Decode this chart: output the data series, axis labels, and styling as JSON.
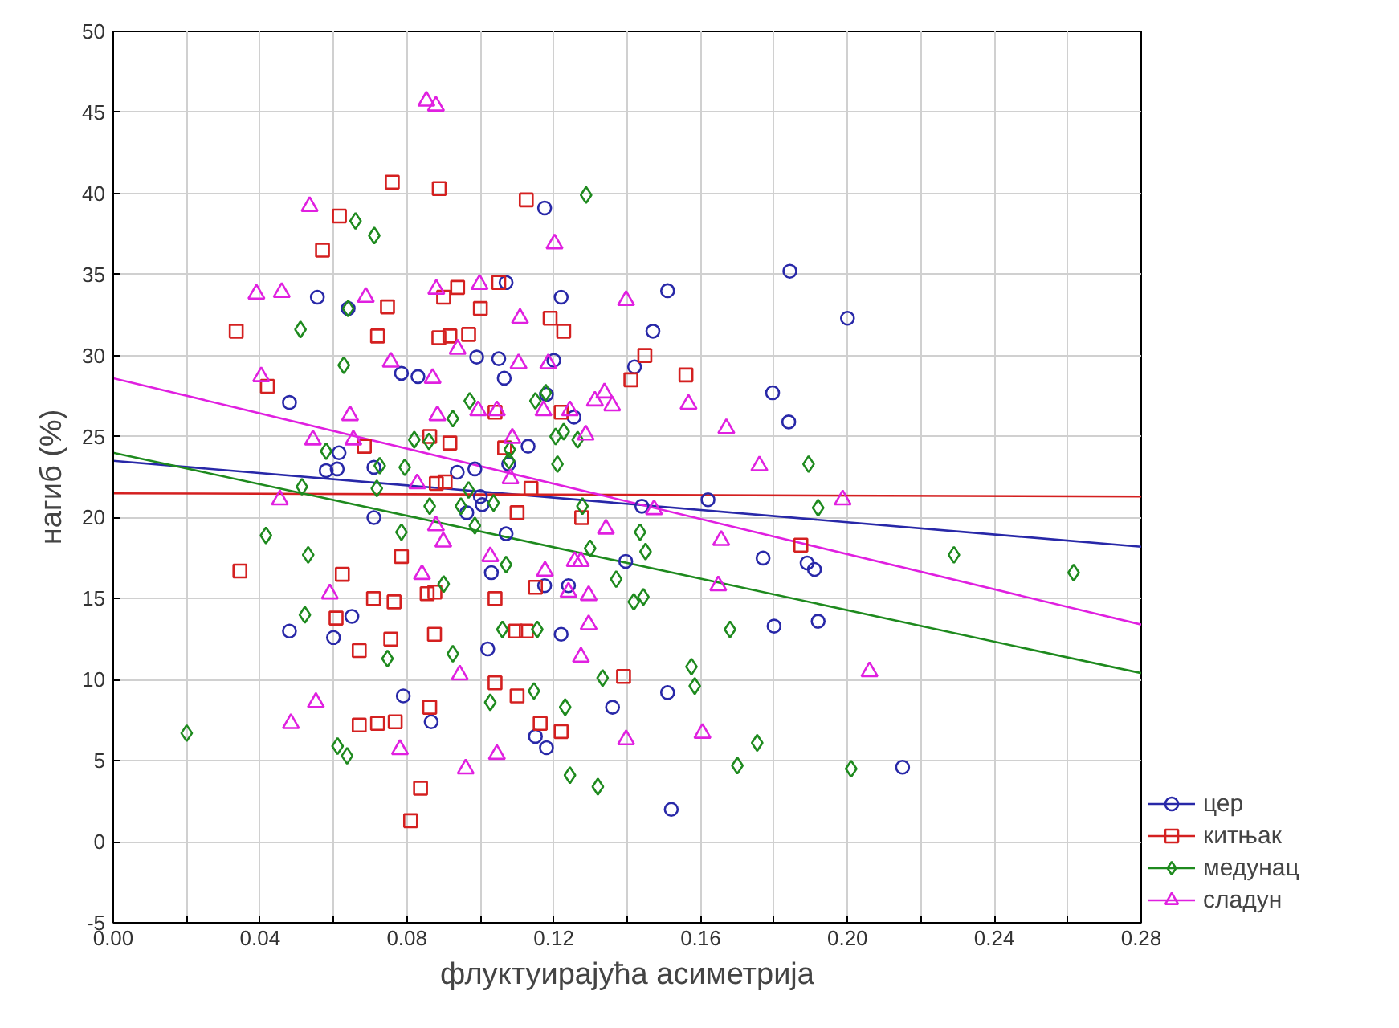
{
  "chart_data": {
    "type": "scatter",
    "xlabel": "флуктуирајућа асиметрија",
    "ylabel": "нагиб (%)",
    "xlim": [
      0,
      0.28
    ],
    "ylim": [
      -5,
      50
    ],
    "xticks": [
      {
        "value": 0,
        "label": "0.00"
      },
      {
        "value": 0.02,
        "label": null
      },
      {
        "value": 0.04,
        "label": "0.04"
      },
      {
        "value": 0.06,
        "label": null
      },
      {
        "value": 0.08,
        "label": "0.08"
      },
      {
        "value": 0.1,
        "label": null
      },
      {
        "value": 0.12,
        "label": "0.12"
      },
      {
        "value": 0.14,
        "label": null
      },
      {
        "value": 0.16,
        "label": "0.16"
      },
      {
        "value": 0.18,
        "label": null
      },
      {
        "value": 0.2,
        "label": "0.20"
      },
      {
        "value": 0.22,
        "label": null
      },
      {
        "value": 0.24,
        "label": "0.24"
      },
      {
        "value": 0.26,
        "label": null
      },
      {
        "value": 0.28,
        "label": "0.28"
      }
    ],
    "yticks": [
      -5,
      0,
      5,
      10,
      15,
      20,
      25,
      30,
      35,
      40,
      45,
      50
    ],
    "grid": true,
    "legend": "bottom right",
    "series": [
      {
        "name": "цер",
        "marker": "circle",
        "color": "#2828a8",
        "x": [
          0.1175,
          0.107,
          0.122,
          0.064,
          0.0556,
          0.099,
          0.105,
          0.0785,
          0.083,
          0.1065,
          0.12,
          0.048,
          0.118,
          0.1255,
          0.0615,
          0.113,
          0.1077,
          0.058,
          0.061,
          0.071,
          0.0937,
          0.0985,
          0.1,
          0.1005,
          0.0963,
          0.071,
          0.107,
          0.1396,
          0.103,
          0.1175,
          0.124,
          0.065,
          0.048,
          0.06,
          0.102,
          0.122,
          0.079,
          0.136,
          0.0866,
          0.115,
          0.118,
          0.1843,
          0.2,
          0.151,
          0.147,
          0.142,
          0.1796,
          0.184,
          0.144,
          0.162,
          0.177,
          0.189,
          0.191,
          0.18,
          0.192,
          0.151,
          0.152,
          0.215
        ],
        "values": [
          39.1,
          34.5,
          33.6,
          32.9,
          33.6,
          29.9,
          29.8,
          28.9,
          28.7,
          28.6,
          29.7,
          27.1,
          27.6,
          26.2,
          24.0,
          24.4,
          23.3,
          22.9,
          23.0,
          23.1,
          22.8,
          23.0,
          21.3,
          20.8,
          20.3,
          20.0,
          19.0,
          17.3,
          16.6,
          15.8,
          15.8,
          13.9,
          13.0,
          12.6,
          11.9,
          12.8,
          9.0,
          8.3,
          7.4,
          6.5,
          5.8,
          35.2,
          32.3,
          34.0,
          31.5,
          29.3,
          27.7,
          25.9,
          20.7,
          21.1,
          17.5,
          17.2,
          16.8,
          13.3,
          13.6,
          9.2,
          2.0,
          4.6
        ]
      },
      {
        "name": "китњак",
        "marker": "square",
        "color": "#d42020",
        "x": [
          0.076,
          0.0888,
          0.1125,
          0.0616,
          0.057,
          0.105,
          0.0938,
          0.09,
          0.0747,
          0.1,
          0.119,
          0.1227,
          0.0335,
          0.072,
          0.0887,
          0.0917,
          0.0968,
          0.042,
          0.104,
          0.122,
          0.0862,
          0.0917,
          0.0684,
          0.1066,
          0.088,
          0.0904,
          0.1138,
          0.141,
          0.1448,
          0.156,
          0.1276,
          0.11,
          0.0785,
          0.0345,
          0.0624,
          0.0855,
          0.0876,
          0.115,
          0.0709,
          0.0765,
          0.104,
          0.0607,
          0.0756,
          0.0875,
          0.067,
          0.1096,
          0.1125,
          0.139,
          0.104,
          0.11,
          0.0862,
          0.067,
          0.072,
          0.0768,
          0.1163,
          0.122,
          0.0837,
          0.081,
          0.1873
        ],
        "values": [
          40.7,
          40.3,
          39.6,
          38.6,
          36.5,
          34.5,
          34.2,
          33.6,
          33.0,
          32.9,
          32.3,
          31.5,
          31.5,
          31.2,
          31.1,
          31.2,
          31.3,
          28.1,
          26.5,
          26.5,
          25.0,
          24.6,
          24.4,
          24.3,
          22.1,
          22.2,
          21.8,
          28.5,
          30.0,
          28.8,
          20.0,
          20.3,
          17.6,
          16.7,
          16.5,
          15.3,
          15.4,
          15.7,
          15.0,
          14.8,
          15.0,
          13.8,
          12.5,
          12.8,
          11.8,
          13.0,
          13.0,
          10.2,
          9.8,
          9.0,
          8.3,
          7.2,
          7.3,
          7.4,
          7.3,
          6.8,
          3.3,
          1.3,
          18.3
        ]
      },
      {
        "name": "медунац",
        "marker": "diamond",
        "color": "#1e8a1e",
        "x": [
          0.1288,
          0.066,
          0.0711,
          0.064,
          0.051,
          0.0628,
          0.0971,
          0.0925,
          0.115,
          0.1178,
          0.1205,
          0.1227,
          0.1265,
          0.082,
          0.086,
          0.058,
          0.108,
          0.121,
          0.0726,
          0.0794,
          0.1078,
          0.0514,
          0.0718,
          0.0968,
          0.0862,
          0.0947,
          0.1036,
          0.1278,
          0.0985,
          0.0785,
          0.0416,
          0.1299,
          0.0531,
          0.107,
          0.137,
          0.09,
          0.0522,
          0.106,
          0.1155,
          0.0925,
          0.0747,
          0.1333,
          0.1146,
          0.1027,
          0.1231,
          0.02,
          0.0611,
          0.0637,
          0.1244,
          0.132,
          0.1894,
          0.192,
          0.1435,
          0.145,
          0.1418,
          0.1444,
          0.168,
          0.1575,
          0.1584,
          0.1754,
          0.17,
          0.201,
          0.229,
          0.2616
        ],
        "values": [
          39.9,
          38.3,
          37.4,
          32.9,
          31.6,
          29.4,
          27.2,
          26.1,
          27.2,
          27.7,
          25.0,
          25.3,
          24.8,
          24.8,
          24.7,
          24.1,
          24.2,
          23.3,
          23.2,
          23.1,
          23.5,
          21.9,
          21.8,
          21.7,
          20.7,
          20.7,
          20.9,
          20.7,
          19.5,
          19.1,
          18.9,
          18.1,
          17.7,
          17.1,
          16.2,
          15.9,
          14.0,
          13.1,
          13.1,
          11.6,
          11.3,
          10.1,
          9.3,
          8.6,
          8.3,
          6.7,
          5.9,
          5.3,
          4.1,
          3.4,
          23.3,
          20.6,
          19.1,
          17.9,
          14.8,
          15.1,
          13.1,
          10.8,
          9.6,
          6.1,
          4.7,
          4.5,
          17.7,
          16.6
        ]
      },
      {
        "name": "сладун",
        "marker": "triangle",
        "color": "#e020e0",
        "x": [
          0.0853,
          0.0879,
          0.0535,
          0.1202,
          0.039,
          0.0459,
          0.0688,
          0.088,
          0.0998,
          0.1397,
          0.1108,
          0.0938,
          0.0756,
          0.1104,
          0.1185,
          0.0403,
          0.087,
          0.1312,
          0.1338,
          0.1359,
          0.0645,
          0.0883,
          0.0994,
          0.1045,
          0.1172,
          0.1244,
          0.1287,
          0.0544,
          0.0654,
          0.1087,
          0.1082,
          0.0828,
          0.1567,
          0.167,
          0.176,
          0.0454,
          0.0879,
          0.0899,
          0.1342,
          0.1027,
          0.1257,
          0.1274,
          0.0841,
          0.1176,
          0.059,
          0.124,
          0.1295,
          0.1295,
          0.1274,
          0.0944,
          0.0552,
          0.0484,
          0.0781,
          0.1397,
          0.096,
          0.1045,
          0.1987,
          0.1473,
          0.1656,
          0.1648,
          0.206,
          0.1605
        ],
        "values": [
          45.7,
          45.4,
          39.2,
          36.9,
          33.8,
          33.9,
          33.6,
          34.1,
          34.4,
          33.4,
          32.3,
          30.4,
          29.6,
          29.5,
          29.5,
          28.7,
          28.6,
          27.2,
          27.7,
          26.9,
          26.3,
          26.3,
          26.6,
          26.6,
          26.6,
          26.6,
          25.1,
          24.8,
          24.8,
          24.9,
          22.4,
          22.1,
          27.0,
          25.5,
          23.2,
          21.1,
          19.5,
          18.5,
          19.3,
          17.6,
          17.3,
          17.3,
          16.5,
          16.7,
          15.3,
          15.4,
          15.2,
          13.4,
          11.4,
          10.3,
          8.6,
          7.3,
          5.7,
          6.3,
          4.5,
          5.4,
          21.1,
          20.5,
          18.6,
          15.8,
          10.5,
          6.7
        ]
      },
      {
        "type": "line",
        "color": "#2828a8",
        "x": [
          0,
          0.28
        ],
        "values": [
          23.5,
          18.2
        ]
      },
      {
        "type": "line",
        "color": "#d42020",
        "x": [
          0,
          0.28
        ],
        "values": [
          21.5,
          21.3
        ]
      },
      {
        "type": "line",
        "color": "#1e8a1e",
        "x": [
          0,
          0.28
        ],
        "values": [
          24.0,
          10.4
        ]
      },
      {
        "type": "line",
        "color": "#e020e0",
        "x": [
          0,
          0.28
        ],
        "values": [
          28.6,
          13.4
        ]
      }
    ]
  }
}
